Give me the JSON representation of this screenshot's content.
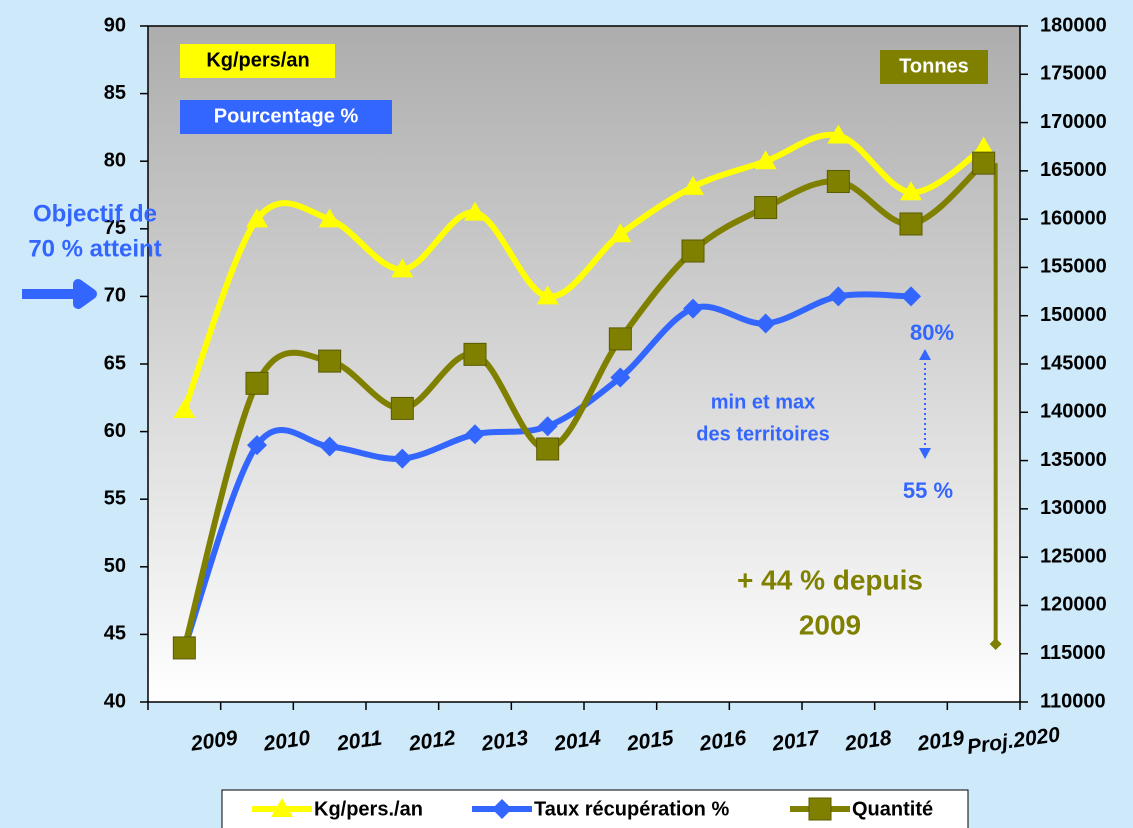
{
  "chart_data": {
    "type": "line",
    "categories": [
      "2009",
      "2010",
      "2011",
      "2012",
      "2013",
      "2014",
      "2015",
      "2016",
      "2017",
      "2018",
      "2019",
      "Proj.2020"
    ],
    "series": [
      {
        "name": "Kg/pers./an",
        "color": "#ffff00",
        "marker": "triangle",
        "values": [
          61.6,
          75.7,
          75.7,
          72.0,
          76.2,
          70.0,
          74.6,
          78.1,
          80.0,
          81.9,
          77.7,
          81.0
        ]
      },
      {
        "name": "Taux récupération %",
        "color": "#3366ff",
        "marker": "diamond",
        "values": [
          44.0,
          59.0,
          58.9,
          58.0,
          59.8,
          60.4,
          64.0,
          69.1,
          68.0,
          70.0,
          70.0,
          null
        ]
      },
      {
        "name": "Quantité",
        "color": "#808000",
        "marker": "square",
        "axis": "y2",
        "values": [
          115600,
          143000,
          145300,
          140400,
          146000,
          136200,
          147600,
          156700,
          161200,
          163900,
          159500,
          165800
        ]
      }
    ],
    "drop_marker": {
      "category": "Proj.2020",
      "axis": "y2",
      "value": 116000,
      "color": "#808000"
    },
    "ylim": [
      40,
      90
    ],
    "yticks": [
      40,
      45,
      50,
      55,
      60,
      65,
      70,
      75,
      80,
      85,
      90
    ],
    "y2lim": [
      110000,
      180000
    ],
    "y2ticks": [
      110000,
      115000,
      120000,
      125000,
      130000,
      135000,
      140000,
      145000,
      150000,
      155000,
      160000,
      165000,
      170000,
      175000,
      180000
    ],
    "legend": "bottom",
    "annotations": [
      {
        "lines": [
          "Kg/pers/an"
        ],
        "color": "#000000",
        "background": "#ffff00"
      },
      {
        "lines": [
          "Pourcentage %"
        ],
        "color": "#ffffff",
        "background": "#3366ff"
      },
      {
        "lines": [
          "Tonnes"
        ],
        "color": "#ffffff",
        "background": "#808000"
      },
      {
        "lines": [
          "Objectif de",
          "70 % atteint"
        ],
        "color": "#3366ff"
      },
      {
        "lines": [
          "80%"
        ],
        "color": "#3366ff"
      },
      {
        "lines": [
          "min et max",
          "des territoires"
        ],
        "color": "#3366ff"
      },
      {
        "lines": [
          "55 %"
        ],
        "color": "#3366ff"
      },
      {
        "lines": [
          "+ 44 % depuis",
          "2009"
        ],
        "color": "#808000"
      }
    ]
  }
}
